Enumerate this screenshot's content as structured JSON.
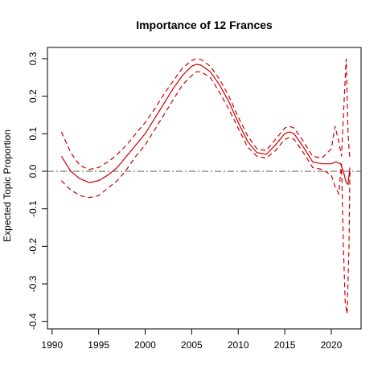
{
  "chart_data": {
    "type": "line",
    "title": "Importance of 12 Frances",
    "xlabel": "",
    "ylabel": "Expected Topic Proportion",
    "xlim": [
      1989.5,
      2023.2
    ],
    "ylim": [
      -0.42,
      0.33
    ],
    "x_ticks": [
      1990,
      1995,
      2000,
      2005,
      2010,
      2015,
      2020
    ],
    "y_ticks": [
      -0.4,
      -0.3,
      -0.2,
      -0.1,
      0.0,
      0.1,
      0.2,
      0.3
    ],
    "reference_line": 0,
    "colors": {
      "line": "#cc0000",
      "reference": "#555555",
      "axis": "#000000"
    },
    "series": [
      {
        "role": "estimate",
        "style": "solid",
        "x": [
          1991,
          1992,
          1993,
          1994,
          1995,
          1996,
          1997,
          1998,
          1999,
          2000,
          2001,
          2002,
          2003,
          2004,
          2005,
          2005.5,
          2006,
          2007,
          2008,
          2009,
          2010,
          2011,
          2012,
          2013,
          2014,
          2015,
          2015.5,
          2016,
          2017,
          2018,
          2019,
          2020,
          2020.5,
          2021,
          2021.3,
          2021.6,
          2021.8,
          2022
        ],
        "y": [
          0.04,
          0.0,
          -0.02,
          -0.03,
          -0.025,
          -0.01,
          0.01,
          0.04,
          0.07,
          0.1,
          0.14,
          0.18,
          0.22,
          0.255,
          0.28,
          0.285,
          0.283,
          0.265,
          0.23,
          0.185,
          0.13,
          0.08,
          0.05,
          0.045,
          0.07,
          0.1,
          0.105,
          0.1,
          0.065,
          0.025,
          0.02,
          0.02,
          0.025,
          0.02,
          0.0,
          -0.03,
          -0.035,
          0.01
        ]
      },
      {
        "role": "upper-ci",
        "style": "dashed",
        "x": [
          1991,
          1992,
          1993,
          1994,
          1995,
          1996,
          1997,
          1998,
          1999,
          2000,
          2001,
          2002,
          2003,
          2004,
          2005,
          2005.5,
          2006,
          2007,
          2008,
          2009,
          2010,
          2011,
          2012,
          2013,
          2014,
          2015,
          2015.5,
          2016,
          2017,
          2018,
          2019,
          2020,
          2020.4,
          2020.8,
          2021.1,
          2021.4,
          2021.6,
          2021.8,
          2022
        ],
        "y": [
          0.105,
          0.05,
          0.015,
          0.005,
          0.01,
          0.025,
          0.045,
          0.07,
          0.1,
          0.13,
          0.165,
          0.205,
          0.24,
          0.275,
          0.295,
          0.3,
          0.298,
          0.28,
          0.245,
          0.2,
          0.145,
          0.095,
          0.06,
          0.055,
          0.085,
          0.115,
          0.12,
          0.115,
          0.08,
          0.04,
          0.035,
          0.06,
          0.12,
          0.08,
          0.04,
          0.2,
          0.3,
          0.1,
          0.03
        ]
      },
      {
        "role": "lower-ci",
        "style": "dashed",
        "x": [
          1991,
          1992,
          1993,
          1994,
          1995,
          1996,
          1997,
          1998,
          1999,
          2000,
          2001,
          2002,
          2003,
          2004,
          2005,
          2005.5,
          2006,
          2007,
          2008,
          2009,
          2010,
          2011,
          2012,
          2013,
          2014,
          2015,
          2015.5,
          2016,
          2017,
          2018,
          2019,
          2020,
          2020.4,
          2020.8,
          2021.1,
          2021.3,
          2021.5,
          2021.7,
          2021.9,
          2022
        ],
        "y": [
          -0.025,
          -0.05,
          -0.065,
          -0.07,
          -0.065,
          -0.045,
          -0.025,
          0.005,
          0.04,
          0.07,
          0.11,
          0.15,
          0.19,
          0.23,
          0.255,
          0.265,
          0.265,
          0.25,
          0.21,
          0.165,
          0.115,
          0.065,
          0.04,
          0.035,
          0.055,
          0.085,
          0.09,
          0.085,
          0.05,
          0.01,
          0.005,
          -0.01,
          -0.04,
          -0.06,
          0.02,
          -0.2,
          -0.35,
          -0.38,
          -0.2,
          0.0
        ]
      }
    ]
  }
}
